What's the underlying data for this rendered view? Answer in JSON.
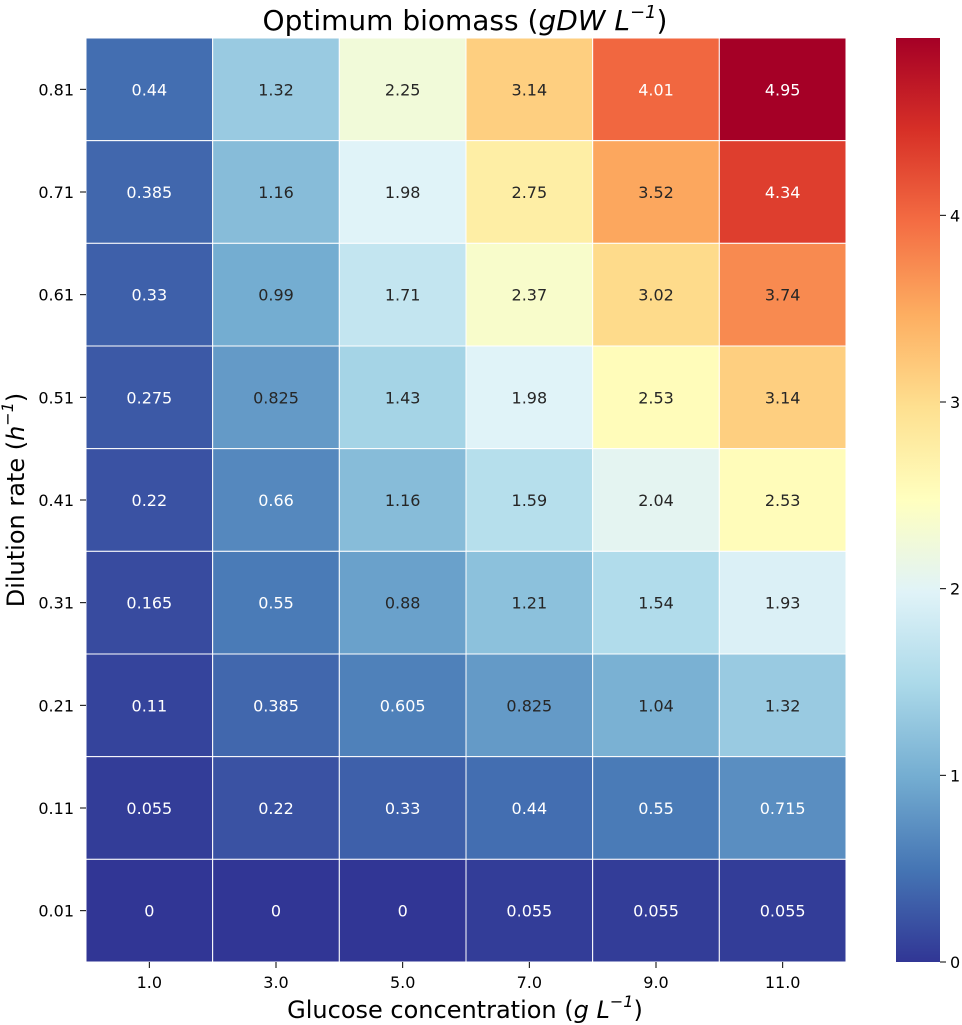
{
  "chart_data": {
    "type": "heatmap",
    "title": {
      "prefix": "Optimum biomass (",
      "unit_main": "gDW L",
      "unit_exp": "−1",
      "suffix": ")"
    },
    "xlabel": {
      "prefix": "Glucose concentration (",
      "unit_main": "g L",
      "unit_exp": "−1",
      "suffix": ")"
    },
    "ylabel": {
      "prefix": "Dilution rate (",
      "unit_main": "h",
      "unit_exp": "−1",
      "suffix": ")"
    },
    "x_categories": [
      "1.0",
      "3.0",
      "5.0",
      "7.0",
      "9.0",
      "11.0"
    ],
    "y_categories": [
      "0.81",
      "0.71",
      "0.61",
      "0.51",
      "0.41",
      "0.31",
      "0.21",
      "0.11",
      "0.01"
    ],
    "values": [
      [
        0.44,
        1.32,
        2.25,
        3.14,
        4.01,
        4.95
      ],
      [
        0.385,
        1.16,
        1.98,
        2.75,
        3.52,
        4.34
      ],
      [
        0.33,
        0.99,
        1.71,
        2.37,
        3.02,
        3.74
      ],
      [
        0.275,
        0.825,
        1.43,
        1.98,
        2.53,
        3.14
      ],
      [
        0.22,
        0.66,
        1.16,
        1.59,
        2.04,
        2.53
      ],
      [
        0.165,
        0.55,
        0.88,
        1.21,
        1.54,
        1.93
      ],
      [
        0.11,
        0.385,
        0.605,
        0.825,
        1.04,
        1.32
      ],
      [
        0.055,
        0.22,
        0.33,
        0.44,
        0.55,
        0.715
      ],
      [
        0,
        0,
        0,
        0.055,
        0.055,
        0.055
      ]
    ],
    "colormap": "RdYlBu_r",
    "colormap_stops": [
      "#313695",
      "#4575b4",
      "#74add1",
      "#abd9e9",
      "#e0f3f8",
      "#ffffbf",
      "#fee090",
      "#fdae61",
      "#f46d43",
      "#d73027",
      "#a50026"
    ],
    "vmin": 0,
    "vmax": 4.95,
    "colorbar_ticks": [
      0,
      1,
      2,
      3,
      4
    ],
    "grid": false,
    "cell_border_color": "#ffffff"
  }
}
